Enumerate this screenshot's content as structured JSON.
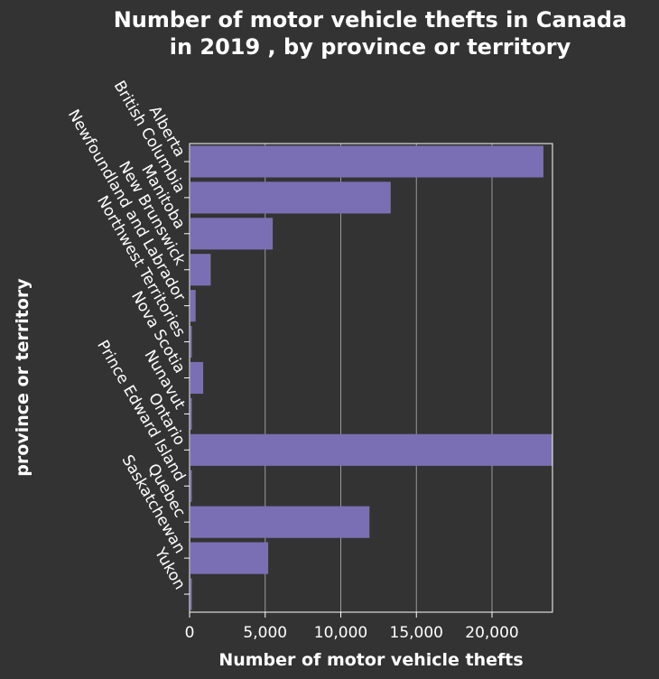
{
  "chart_data": {
    "type": "bar",
    "orientation": "horizontal",
    "title": "Number of motor vehicle thefts in Canada in 2019 , by province or territory",
    "title_lines": [
      "Number of motor vehicle thefts in Canada",
      "in 2019 , by province or territory"
    ],
    "xlabel": "Number of motor vehicle thefts",
    "ylabel": "province or territory",
    "categories": [
      "Alberta",
      "British Columbia",
      "Manitoba",
      "New Brunswick",
      "Newfoundland and Labrador",
      "Northwest Territories",
      "Nova Scotia",
      "Nunavut",
      "Ontario",
      "Prince Edward Island",
      "Quebec",
      "Saskatchewan",
      "Yukon"
    ],
    "values": [
      23400,
      13300,
      5500,
      1400,
      400,
      150,
      900,
      80,
      24000,
      100,
      11900,
      5200,
      120
    ],
    "xlim": [
      0,
      24000
    ],
    "xticks": [
      0,
      5000,
      10000,
      15000,
      20000
    ],
    "xtick_labels": [
      "0",
      "5,000",
      "10,000",
      "15,000",
      "20,000"
    ],
    "grid": "vertical",
    "legend": "none",
    "bar_color": "#7a6fb4",
    "background_color": "#333333",
    "text_color": "#ffffff"
  }
}
